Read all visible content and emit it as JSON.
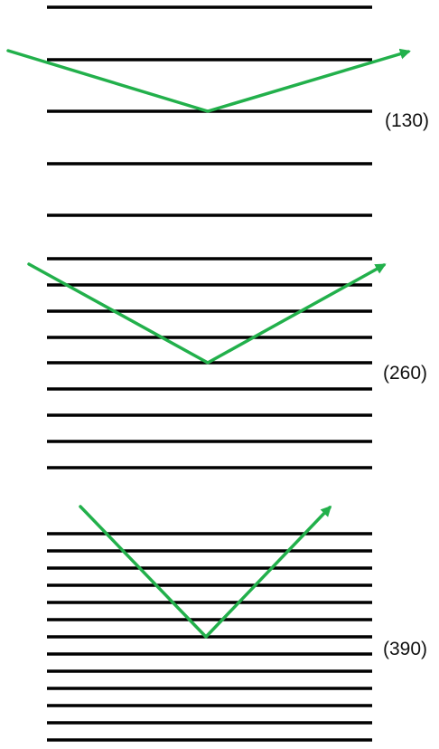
{
  "diagram": {
    "beam_color": "#22b04b",
    "line_color": "#000000",
    "panels": [
      {
        "label": "(130)",
        "plane_count": 5
      },
      {
        "label": "(260)",
        "plane_count": 9
      },
      {
        "label": "(390)",
        "plane_count": 13
      }
    ]
  }
}
